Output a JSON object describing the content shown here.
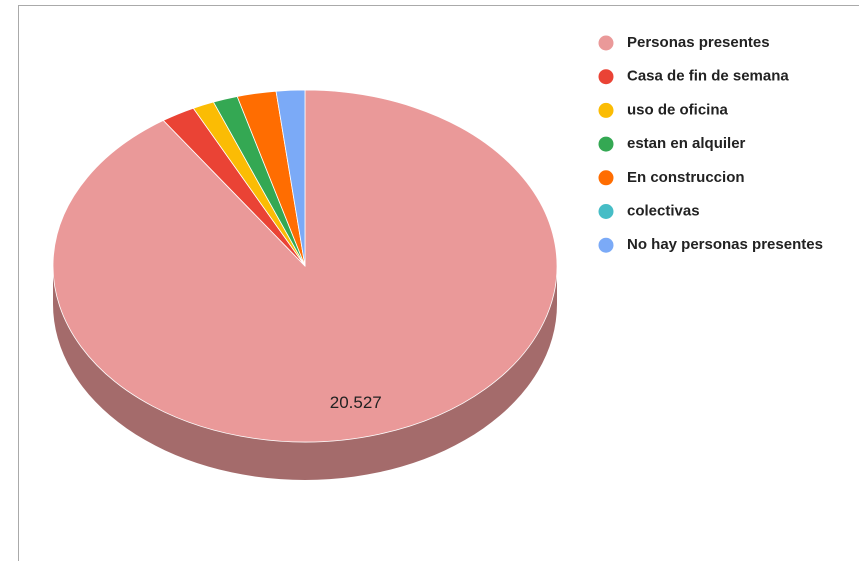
{
  "chart_data": {
    "type": "pie3d",
    "categories": [
      "Personas presentes",
      "Casa de fin de semana",
      "uso de oficina",
      "estan en alquiler",
      "En construccion",
      "colectivas",
      "No hay personas presentes"
    ],
    "values": [
      20527,
      498,
      315,
      359,
      567,
      0,
      416
    ],
    "value_labels": [
      "20.527",
      null,
      null,
      null,
      null,
      null,
      null
    ],
    "colors": [
      "#ea9999",
      "#ea4335",
      "#fbbc04",
      "#34a853",
      "#ff6d01",
      "#46bdc6",
      "#7baaf7"
    ],
    "legend": "right"
  }
}
